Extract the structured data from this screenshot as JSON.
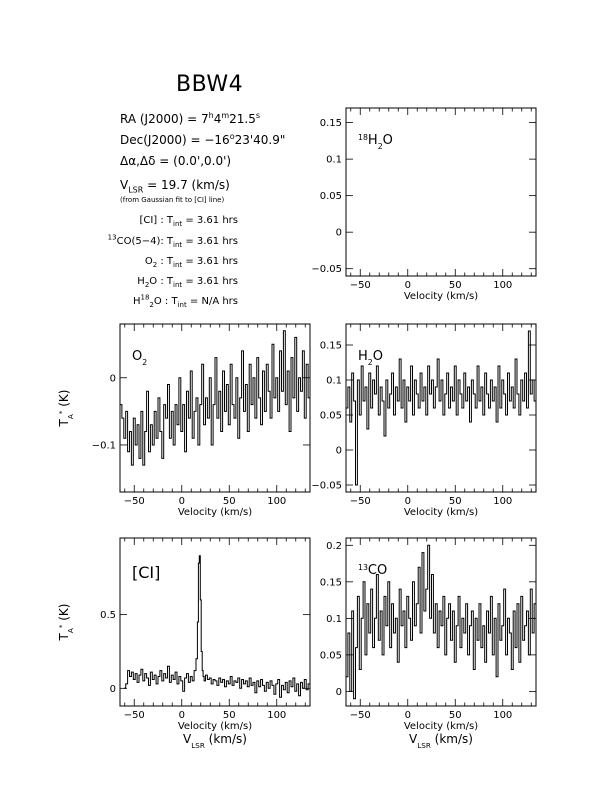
{
  "object_name": "BBW4",
  "info": {
    "ra_label": "RA (J2000) = ",
    "ra_h": "7",
    "ra_hsup": "h",
    "ra_m": "4",
    "ra_msup": "m",
    "ra_s": "21.5",
    "ra_ssup": "s",
    "dec_label": "Dec(J2000) = ",
    "dec_d": "−16",
    "dec_dsup": "o",
    "dec_rest": "23'40.9\"",
    "offset_label": "Δα,Δδ = ",
    "offset_value": "(0.0',0.0')",
    "vlsr_V": "V",
    "vlsr_sub": "LSR",
    "vlsr_rest": " = 19.7 (km/s)",
    "vlsr_note": "(from Gaussian fit to [CI] line)"
  },
  "observations": [
    {
      "line_pre": "",
      "line_sup": "",
      "line_main": "[CI]",
      "line_sub": "",
      "line_tail": "",
      "t_prefix": " : T",
      "t_sub": "int",
      "t_value": " = 3.61 hrs"
    },
    {
      "line_pre": "",
      "line_sup": "13",
      "line_main": "CO(5−4)",
      "line_sub": "",
      "line_tail": "",
      "t_prefix": ": T",
      "t_sub": "int",
      "t_value": " = 3.61 hrs"
    },
    {
      "line_pre": "",
      "line_sup": "",
      "line_main": "O",
      "line_sub": "2",
      "line_tail": "",
      "t_prefix": " : T",
      "t_sub": "int",
      "t_value": " = 3.61 hrs"
    },
    {
      "line_pre": "",
      "line_sup": "",
      "line_main": "H",
      "line_sub": "2",
      "line_tail": "O",
      "t_prefix": " : T",
      "t_sub": "int",
      "t_value": " = 3.61 hrs"
    },
    {
      "line_pre": "H",
      "line_sup": "18",
      "line_main": "",
      "line_sub": "2",
      "line_tail": "O",
      "t_prefix": " : T",
      "t_sub": "int",
      "t_value": " = N/A hrs"
    }
  ],
  "chart_data": [
    {
      "id": "h218o",
      "type": "line",
      "label_main": "H",
      "label_sub": "2",
      "label_sup": "18",
      "label_tail": "O",
      "xlabel": "Velocity (km/s)",
      "xlabel2": "",
      "ylabel_main": "",
      "ylabel_sup": "",
      "ylabel_sub": "",
      "ylabel_tail": "",
      "xlim": [
        -65,
        135
      ],
      "ylim": [
        -0.06,
        0.17
      ],
      "xticks": [
        -50,
        0,
        50,
        100
      ],
      "xtick_labels": [
        "−50",
        "0",
        "50",
        "100"
      ],
      "yticks": [
        -0.05,
        0,
        0.05,
        0.1,
        0.15
      ],
      "ytick_labels": [
        "−0.05",
        "0",
        "0.05",
        "0.1",
        "0.15"
      ],
      "series": [
        {
          "x": [],
          "y": []
        }
      ]
    },
    {
      "id": "o2",
      "type": "line",
      "label_main": "O",
      "label_sub": "2",
      "label_sup": "",
      "label_tail": "",
      "xlabel": "Velocity (km/s)",
      "xlabel2": "",
      "ylabel_main": "T",
      "ylabel_sup": "*",
      "ylabel_sub": "A",
      "ylabel_tail": " (K)",
      "xlim": [
        -65,
        135
      ],
      "ylim": [
        -0.17,
        0.08
      ],
      "xticks": [
        -50,
        0,
        50,
        100
      ],
      "xtick_labels": [
        "−50",
        "0",
        "50",
        "100"
      ],
      "yticks": [
        -0.1,
        0
      ],
      "ytick_labels": [
        "−0.1",
        "0"
      ],
      "series": [
        {
          "x": [
            -64,
            -62,
            -60,
            -58,
            -56,
            -54,
            -52,
            -50,
            -48,
            -46,
            -44,
            -42,
            -40,
            -38,
            -36,
            -34,
            -32,
            -30,
            -28,
            -26,
            -24,
            -22,
            -20,
            -18,
            -16,
            -14,
            -12,
            -10,
            -8,
            -6,
            -4,
            -2,
            0,
            2,
            4,
            6,
            8,
            10,
            12,
            14,
            16,
            18,
            20,
            22,
            24,
            26,
            28,
            30,
            32,
            34,
            36,
            38,
            40,
            42,
            44,
            46,
            48,
            50,
            52,
            54,
            56,
            58,
            60,
            62,
            64,
            66,
            68,
            70,
            72,
            74,
            76,
            78,
            80,
            82,
            84,
            86,
            88,
            90,
            92,
            94,
            96,
            98,
            100,
            102,
            104,
            106,
            108,
            110,
            112,
            114,
            116,
            118,
            120,
            122,
            124,
            126,
            128,
            130,
            132,
            134
          ],
          "y": [
            -0.04,
            -0.06,
            -0.09,
            -0.05,
            -0.11,
            -0.08,
            -0.13,
            -0.06,
            -0.1,
            -0.07,
            -0.12,
            -0.05,
            -0.13,
            -0.08,
            -0.02,
            -0.11,
            -0.07,
            -0.1,
            -0.05,
            -0.09,
            -0.03,
            -0.08,
            -0.12,
            -0.04,
            -0.06,
            -0.01,
            -0.09,
            -0.05,
            -0.1,
            -0.04,
            -0.07,
            0.0,
            -0.08,
            -0.04,
            -0.11,
            -0.02,
            -0.06,
            0.01,
            -0.09,
            -0.05,
            -0.03,
            -0.1,
            -0.04,
            0.02,
            -0.07,
            -0.03,
            -0.06,
            0.0,
            -0.1,
            -0.04,
            0.03,
            -0.06,
            -0.02,
            -0.08,
            0.01,
            -0.05,
            -0.01,
            -0.07,
            0.02,
            -0.04,
            -0.06,
            0.0,
            -0.09,
            -0.03,
            0.04,
            -0.05,
            -0.01,
            -0.08,
            0.02,
            -0.04,
            0.0,
            -0.06,
            0.03,
            -0.03,
            -0.07,
            0.01,
            -0.05,
            0.02,
            -0.02,
            -0.06,
            0.05,
            -0.03,
            0.0,
            -0.05,
            0.04,
            -0.02,
            0.07,
            -0.04,
            0.01,
            -0.08,
            0.03,
            -0.03,
            0.06,
            -0.05,
            0.0,
            -0.02,
            0.04,
            -0.06,
            0.02,
            -0.03
          ]
        }
      ]
    },
    {
      "id": "h2o",
      "type": "line",
      "label_main": "H",
      "label_sub": "2",
      "label_sup": "",
      "label_tail": "O",
      "xlabel": "Velocity (km/s)",
      "xlabel2": "",
      "ylabel_main": "",
      "ylabel_sup": "",
      "ylabel_sub": "",
      "ylabel_tail": "",
      "xlim": [
        -65,
        135
      ],
      "ylim": [
        -0.06,
        0.18
      ],
      "xticks": [
        -50,
        0,
        50,
        100
      ],
      "xtick_labels": [
        "−50",
        "0",
        "50",
        "100"
      ],
      "yticks": [
        -0.05,
        0,
        0.05,
        0.1,
        0.15
      ],
      "ytick_labels": [
        "−0.05",
        "0",
        "0.05",
        "0.1",
        "0.15"
      ],
      "series": [
        {
          "x": [
            -64,
            -62,
            -60,
            -58,
            -56,
            -54,
            -52,
            -50,
            -48,
            -46,
            -44,
            -42,
            -40,
            -38,
            -36,
            -34,
            -32,
            -30,
            -28,
            -26,
            -24,
            -22,
            -20,
            -18,
            -16,
            -14,
            -12,
            -10,
            -8,
            -6,
            -4,
            -2,
            0,
            2,
            4,
            6,
            8,
            10,
            12,
            14,
            16,
            18,
            20,
            22,
            24,
            26,
            28,
            30,
            32,
            34,
            36,
            38,
            40,
            42,
            44,
            46,
            48,
            50,
            52,
            54,
            56,
            58,
            60,
            62,
            64,
            66,
            68,
            70,
            72,
            74,
            76,
            78,
            80,
            82,
            84,
            86,
            88,
            90,
            92,
            94,
            96,
            98,
            100,
            102,
            104,
            106,
            108,
            110,
            112,
            114,
            116,
            118,
            120,
            122,
            124,
            126,
            128,
            130,
            132,
            134
          ],
          "y": [
            0.06,
            0.09,
            0.04,
            0.11,
            0.07,
            -0.05,
            0.1,
            0.05,
            0.12,
            0.07,
            0.09,
            0.03,
            0.11,
            0.06,
            0.1,
            0.08,
            0.12,
            0.05,
            0.09,
            0.07,
            0.02,
            0.1,
            0.06,
            0.08,
            0.11,
            0.05,
            0.09,
            0.07,
            0.13,
            0.06,
            0.1,
            0.04,
            0.09,
            0.07,
            0.12,
            0.05,
            0.1,
            0.08,
            0.06,
            0.11,
            0.07,
            0.09,
            0.05,
            0.12,
            0.08,
            0.1,
            0.06,
            0.09,
            0.13,
            0.07,
            0.1,
            0.05,
            0.08,
            0.11,
            0.06,
            0.09,
            0.07,
            0.12,
            0.05,
            0.1,
            0.08,
            0.06,
            0.11,
            0.07,
            0.09,
            0.04,
            0.1,
            0.08,
            0.06,
            0.12,
            0.07,
            0.09,
            0.05,
            0.11,
            0.08,
            0.06,
            0.1,
            0.07,
            0.09,
            0.04,
            0.12,
            0.06,
            0.1,
            0.08,
            0.05,
            0.11,
            0.07,
            0.09,
            0.06,
            0.13,
            0.08,
            0.05,
            0.1,
            0.07,
            0.11,
            0.06,
            0.17,
            0.08,
            0.1,
            0.07
          ]
        }
      ]
    },
    {
      "id": "ci",
      "type": "line",
      "label_main": "[CI]",
      "label_sub": "",
      "label_sup": "",
      "label_tail": "",
      "xlabel": "Velocity (km/s)",
      "xlabel2": "V",
      "xlabel2_sub": "LSR",
      "xlabel2_tail": " (km/s)",
      "ylabel_main": "T",
      "ylabel_sup": "*",
      "ylabel_sub": "A",
      "ylabel_tail": " (K)",
      "xlim": [
        -65,
        135
      ],
      "ylim": [
        -0.12,
        1.02
      ],
      "xticks": [
        -50,
        0,
        50,
        100
      ],
      "xtick_labels": [
        "−50",
        "0",
        "50",
        "100"
      ],
      "yticks": [
        0,
        0.5
      ],
      "ytick_labels": [
        "0",
        "0.5"
      ],
      "series": [
        {
          "x": [
            -60,
            -58,
            -56,
            -54,
            -52,
            -50,
            -48,
            -46,
            -44,
            -42,
            -40,
            -38,
            -36,
            -34,
            -32,
            -30,
            -28,
            -26,
            -24,
            -22,
            -20,
            -18,
            -16,
            -14,
            -12,
            -10,
            -8,
            -6,
            -4,
            -2,
            0,
            2,
            4,
            6,
            8,
            10,
            12,
            14,
            16,
            17,
            18,
            19,
            20,
            21,
            22,
            23,
            24,
            26,
            28,
            30,
            32,
            34,
            36,
            38,
            40,
            42,
            44,
            46,
            48,
            50,
            52,
            54,
            56,
            58,
            60,
            62,
            64,
            66,
            68,
            70,
            72,
            74,
            76,
            78,
            80,
            82,
            84,
            86,
            88,
            90,
            92,
            94,
            96,
            98,
            100,
            102,
            104,
            106,
            108,
            110,
            112,
            114,
            116,
            118,
            120,
            122,
            124,
            126,
            128,
            130,
            132,
            134
          ],
          "y": [
            0.0,
            0.03,
            0.12,
            0.08,
            0.11,
            0.06,
            0.1,
            0.04,
            0.09,
            0.13,
            0.05,
            0.1,
            0.07,
            0.02,
            0.11,
            0.06,
            0.09,
            0.03,
            0.08,
            0.12,
            0.05,
            0.1,
            0.07,
            0.15,
            0.04,
            0.09,
            0.06,
            0.11,
            0.03,
            0.08,
            0.05,
            -0.02,
            0.07,
            0.1,
            0.04,
            0.08,
            0.05,
            0.12,
            0.2,
            0.45,
            0.85,
            0.9,
            0.6,
            0.25,
            0.12,
            0.08,
            0.05,
            0.09,
            0.06,
            0.07,
            0.03,
            0.06,
            0.05,
            0.02,
            0.07,
            0.04,
            0.06,
            0.01,
            0.05,
            0.03,
            0.08,
            0.02,
            0.05,
            0.04,
            0.07,
            0.0,
            0.06,
            0.03,
            0.05,
            0.01,
            0.07,
            0.02,
            0.04,
            -0.03,
            0.05,
            0.01,
            0.06,
            0.02,
            -0.02,
            0.04,
            0.0,
            0.05,
            0.02,
            -0.04,
            0.03,
            0.06,
            -0.06,
            0.02,
            -0.01,
            0.04,
            -0.03,
            0.05,
            0.01,
            0.07,
            -0.02,
            0.03,
            -0.05,
            0.04,
            0.0,
            0.06,
            -0.01,
            0.03
          ]
        }
      ]
    },
    {
      "id": "13co",
      "type": "line",
      "label_main": "CO",
      "label_sub": "",
      "label_sup": "13",
      "label_tail": "",
      "xlabel": "Velocity (km/s)",
      "xlabel2": "V",
      "xlabel2_sub": "LSR",
      "xlabel2_tail": " (km/s)",
      "ylabel_main": "",
      "ylabel_sup": "",
      "ylabel_sub": "",
      "ylabel_tail": "",
      "xlim": [
        -65,
        135
      ],
      "ylim": [
        -0.02,
        0.21
      ],
      "xticks": [
        -50,
        0,
        50,
        100
      ],
      "xtick_labels": [
        "−50",
        "0",
        "50",
        "100"
      ],
      "yticks": [
        0,
        0.05,
        0.1,
        0.15,
        0.2
      ],
      "ytick_labels": [
        "0",
        "0.05",
        "0.1",
        "0.15",
        "0.2"
      ],
      "series": [
        {
          "x": [
            -64,
            -62,
            -60,
            -58,
            -56,
            -54,
            -52,
            -50,
            -48,
            -46,
            -44,
            -42,
            -40,
            -38,
            -36,
            -34,
            -32,
            -30,
            -28,
            -26,
            -24,
            -22,
            -20,
            -18,
            -16,
            -14,
            -12,
            -10,
            -8,
            -6,
            -4,
            -2,
            0,
            2,
            4,
            6,
            8,
            10,
            12,
            14,
            16,
            18,
            20,
            22,
            24,
            26,
            28,
            30,
            32,
            34,
            36,
            38,
            40,
            42,
            44,
            46,
            48,
            50,
            52,
            54,
            56,
            58,
            60,
            62,
            64,
            66,
            68,
            70,
            72,
            74,
            76,
            78,
            80,
            82,
            84,
            86,
            88,
            90,
            92,
            94,
            96,
            98,
            100,
            102,
            104,
            106,
            108,
            110,
            112,
            114,
            116,
            118,
            120,
            122,
            124,
            126,
            128,
            130,
            132,
            134
          ],
          "y": [
            0.02,
            0.08,
            0.0,
            0.11,
            -0.01,
            0.06,
            0.13,
            0.03,
            0.1,
            0.15,
            0.05,
            0.12,
            0.08,
            0.14,
            0.06,
            0.1,
            0.16,
            0.07,
            0.11,
            0.05,
            0.13,
            0.09,
            0.15,
            0.06,
            0.12,
            0.08,
            0.1,
            0.04,
            0.14,
            0.09,
            0.11,
            0.06,
            0.13,
            0.1,
            0.07,
            0.15,
            0.09,
            0.12,
            0.17,
            0.08,
            0.19,
            0.11,
            0.14,
            0.2,
            0.1,
            0.16,
            0.08,
            0.12,
            0.06,
            0.11,
            0.09,
            0.13,
            0.05,
            0.1,
            0.12,
            0.07,
            0.11,
            0.04,
            0.09,
            0.13,
            0.06,
            0.1,
            0.08,
            0.12,
            0.05,
            0.09,
            0.11,
            0.03,
            0.1,
            0.07,
            0.12,
            0.06,
            0.09,
            0.04,
            0.11,
            0.08,
            0.13,
            0.05,
            0.1,
            0.02,
            0.12,
            0.07,
            0.09,
            0.14,
            0.05,
            0.1,
            0.08,
            0.03,
            0.11,
            0.06,
            0.12,
            0.04,
            0.13,
            0.07,
            0.09,
            0.11,
            0.05,
            0.14,
            0.08,
            0.12
          ]
        }
      ]
    }
  ]
}
